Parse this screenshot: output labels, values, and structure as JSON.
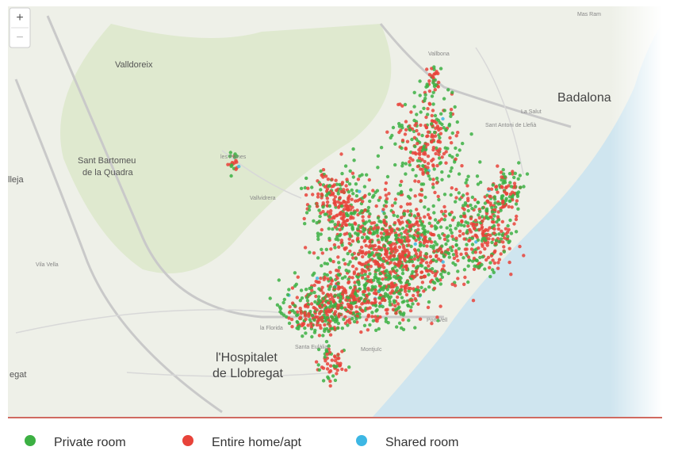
{
  "controls": {
    "zoom_in": "+",
    "zoom_out": "−"
  },
  "places": [
    "Valldoreix",
    "Badalona",
    "Sant Bartomeu",
    "de la Quadra",
    "l'Hospitalet",
    "de Llobregat",
    "La Salut",
    "Sant Antoni de Llefià",
    "Vallbona",
    "Mas Ram",
    "les Planes",
    "Vallvidrera",
    "Vila Vella",
    "la Florida",
    "Santa Eulàlia",
    "Montjuïc",
    "Port Vell",
    "lleja",
    "egat"
  ],
  "legend": [
    {
      "name": "Private room",
      "color": "#3cb043"
    },
    {
      "name": "Entire home/apt",
      "color": "#e8433a"
    },
    {
      "name": "Shared room",
      "color": "#3db7e4"
    }
  ]
}
